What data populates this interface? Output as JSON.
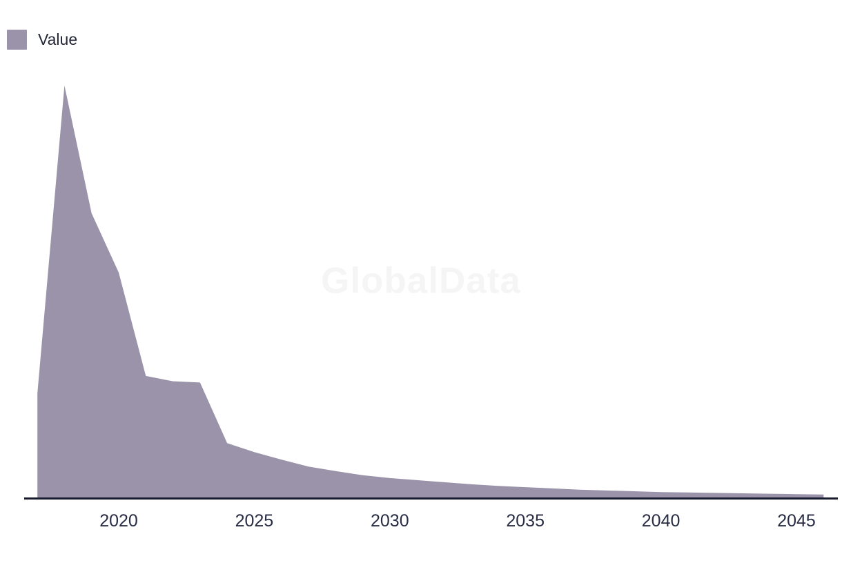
{
  "legend": {
    "label": "Value",
    "swatch_color": "#9a93a9"
  },
  "watermark": "GlobalData",
  "colors": {
    "area_fill": "#9a93a9",
    "axis_line": "#191b2e",
    "tick_label": "#282c44",
    "watermark": "#f5f5f6",
    "background": "#ffffff"
  },
  "chart_data": {
    "type": "area",
    "title": "",
    "xlabel": "",
    "ylabel": "",
    "grid": false,
    "y_axis_visible": false,
    "legend_position": "top-left",
    "x_range": [
      2017,
      2046
    ],
    "ylim": [
      0,
      100
    ],
    "x_ticks": [
      2020,
      2025,
      2030,
      2035,
      2040,
      2045
    ],
    "note_units": "relative value, peak year normalized to 100 (no y-axis labels shown in chart)",
    "series": [
      {
        "name": "Value",
        "color": "#9a93a9",
        "x": [
          2017,
          2018,
          2019,
          2020,
          2021,
          2022,
          2023,
          2024,
          2025,
          2026,
          2027,
          2028,
          2029,
          2030,
          2031,
          2032,
          2033,
          2034,
          2035,
          2036,
          2037,
          2038,
          2039,
          2040,
          2041,
          2042,
          2043,
          2044,
          2045,
          2046
        ],
        "values": [
          25.3,
          100,
          69,
          54.6,
          29.5,
          28.2,
          27.9,
          13.2,
          11.0,
          9.2,
          7.5,
          6.4,
          5.4,
          4.7,
          4.2,
          3.7,
          3.2,
          2.8,
          2.5,
          2.2,
          1.9,
          1.7,
          1.5,
          1.3,
          1.2,
          1.1,
          1.0,
          0.9,
          0.8,
          0.7
        ]
      }
    ]
  }
}
